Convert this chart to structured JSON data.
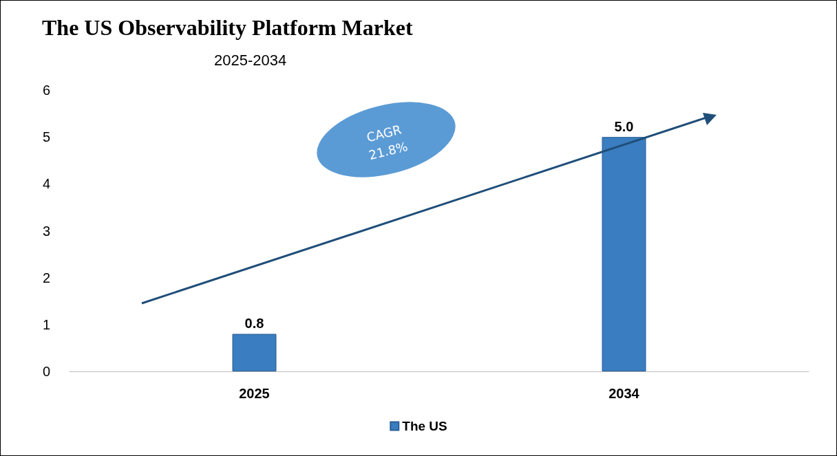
{
  "chart_data": {
    "type": "bar",
    "title": "The US Observability Platform Market",
    "subtitle": "2025-2034",
    "categories": [
      "2025",
      "2034"
    ],
    "series": [
      {
        "name": "The US",
        "color": "#3a7dc0",
        "values": [
          0.8,
          5.0
        ]
      }
    ],
    "value_labels": [
      "0.8",
      "5.0"
    ],
    "ylim": [
      0,
      6
    ],
    "yticks": [
      0,
      1,
      2,
      3,
      4,
      5,
      6
    ],
    "grid": false,
    "legend": "bottom",
    "annotations": [
      "CAGR 21.8%"
    ]
  }
}
